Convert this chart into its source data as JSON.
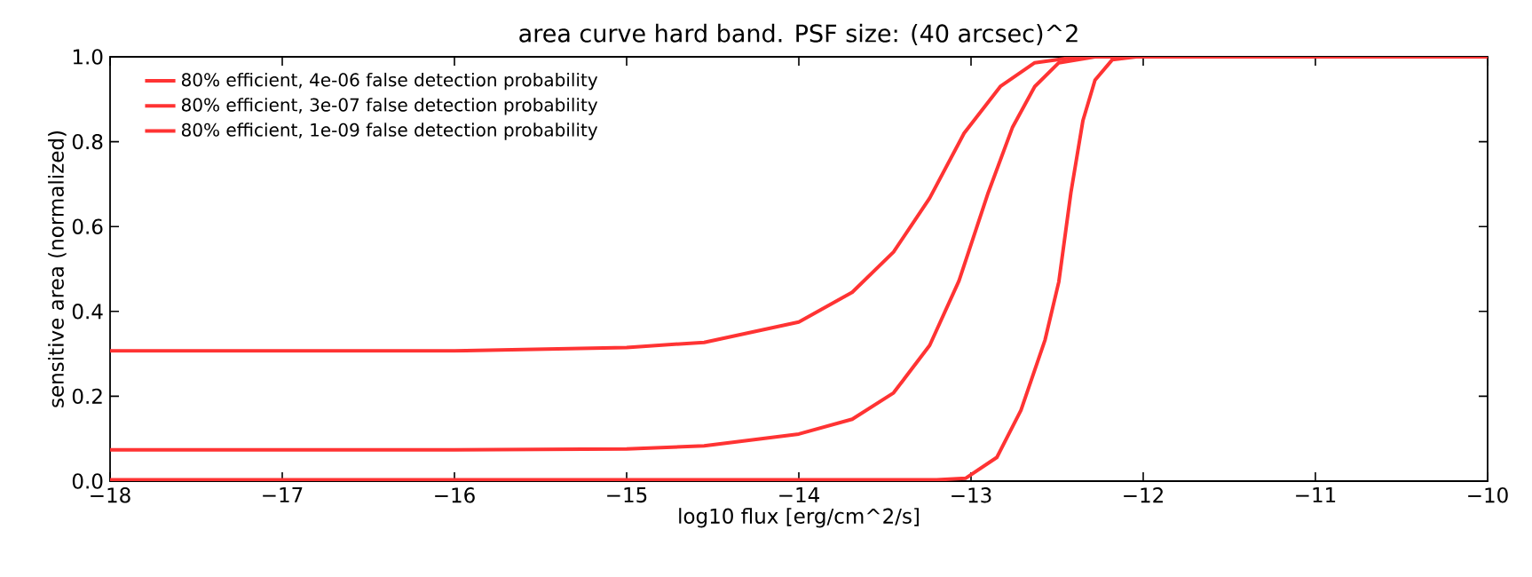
{
  "chart_data": {
    "type": "line",
    "title": "area curve hard band. PSF size: (40 arcsec)^2",
    "xlabel": "log10 flux [erg/cm^2/s]",
    "ylabel": "sensitive area (normalized)",
    "xlim": [
      -18,
      -10
    ],
    "ylim": [
      0,
      1
    ],
    "xticks": [
      {
        "value": -18,
        "label": "−18"
      },
      {
        "value": -17,
        "label": "−17"
      },
      {
        "value": -16,
        "label": "−16"
      },
      {
        "value": -15,
        "label": "−15"
      },
      {
        "value": -14,
        "label": "−14"
      },
      {
        "value": -13,
        "label": "−13"
      },
      {
        "value": -12,
        "label": "−12"
      },
      {
        "value": -11,
        "label": "−11"
      },
      {
        "value": -10,
        "label": "−10"
      }
    ],
    "yticks": [
      {
        "value": 0,
        "label": "0.0"
      },
      {
        "value": 0.2,
        "label": "0.2"
      },
      {
        "value": 0.4,
        "label": "0.4"
      },
      {
        "value": 0.6,
        "label": "0.6"
      },
      {
        "value": 0.8,
        "label": "0.8"
      },
      {
        "value": 1,
        "label": "1.0"
      }
    ],
    "legend": "top left",
    "marker": "none",
    "line_style": "solid",
    "grid": false,
    "series": [
      {
        "name": "80% efficient, 4e-06 false detection probability",
        "color": "#ff3333",
        "x": [
          -18,
          -17,
          -16,
          -15,
          -14.55,
          -14,
          -13.69,
          -13.45,
          -13.24,
          -13.04,
          -12.83,
          -12.63,
          -12.38,
          -12,
          -11,
          -10
        ],
        "values": [
          0.307,
          0.307,
          0.307,
          0.315,
          0.327,
          0.375,
          0.445,
          0.54,
          0.667,
          0.82,
          0.93,
          0.986,
          1.0,
          1.0,
          1.0,
          1.0
        ]
      },
      {
        "name": "80% efficient, 3e-07 false detection probability",
        "color": "#ff3333",
        "x": [
          -18,
          -17,
          -16,
          -15,
          -14.55,
          -14,
          -13.69,
          -13.45,
          -13.24,
          -13.07,
          -12.9,
          -12.76,
          -12.63,
          -12.49,
          -12.28,
          -12,
          -11,
          -10
        ],
        "values": [
          0.074,
          0.074,
          0.074,
          0.076,
          0.083,
          0.111,
          0.146,
          0.208,
          0.32,
          0.472,
          0.68,
          0.833,
          0.93,
          0.986,
          1.0,
          1.0,
          1.0,
          1.0
        ]
      },
      {
        "name": "80% efficient, 1e-09 false detection probability",
        "color": "#ff3333",
        "x": [
          -18,
          -16,
          -14,
          -13.2,
          -13.03,
          -12.85,
          -12.71,
          -12.57,
          -12.49,
          -12.42,
          -12.35,
          -12.28,
          -12.18,
          -12.04,
          -11,
          -10
        ],
        "values": [
          0.003,
          0.003,
          0.003,
          0.003,
          0.007,
          0.056,
          0.167,
          0.333,
          0.47,
          0.68,
          0.85,
          0.945,
          0.993,
          1.0,
          1.0,
          1.0
        ]
      }
    ]
  }
}
